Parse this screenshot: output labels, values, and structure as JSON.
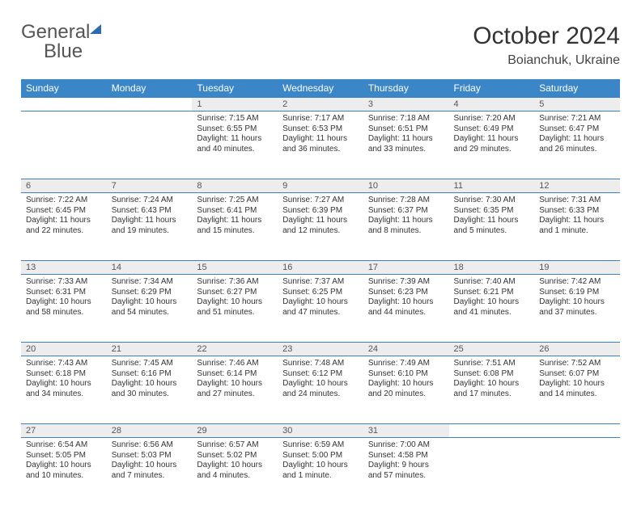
{
  "brand": {
    "word1": "General",
    "word2": "Blue"
  },
  "title": "October 2024",
  "location": "Boianchuk, Ukraine",
  "day_headers": [
    "Sunday",
    "Monday",
    "Tuesday",
    "Wednesday",
    "Thursday",
    "Friday",
    "Saturday"
  ],
  "colors": {
    "header_bg": "#3b86c7",
    "header_fg": "#ffffff",
    "rule": "#3b7fc4",
    "daynum_bg": "#ededed",
    "text": "#333333",
    "brand_gray": "#555555",
    "brand_blue": "#3b7fc4"
  },
  "typography": {
    "title_fontsize_pt": 22,
    "location_fontsize_pt": 12,
    "header_fontsize_pt": 9,
    "body_fontsize_pt": 7.5,
    "daynum_fontsize_pt": 8
  },
  "layout": {
    "cols": 7,
    "rows": 5,
    "leading_blanks": 2
  },
  "days": [
    {
      "n": "1",
      "sunrise": "7:15 AM",
      "sunset": "6:55 PM",
      "daylight": "11 hours and 40 minutes."
    },
    {
      "n": "2",
      "sunrise": "7:17 AM",
      "sunset": "6:53 PM",
      "daylight": "11 hours and 36 minutes."
    },
    {
      "n": "3",
      "sunrise": "7:18 AM",
      "sunset": "6:51 PM",
      "daylight": "11 hours and 33 minutes."
    },
    {
      "n": "4",
      "sunrise": "7:20 AM",
      "sunset": "6:49 PM",
      "daylight": "11 hours and 29 minutes."
    },
    {
      "n": "5",
      "sunrise": "7:21 AM",
      "sunset": "6:47 PM",
      "daylight": "11 hours and 26 minutes."
    },
    {
      "n": "6",
      "sunrise": "7:22 AM",
      "sunset": "6:45 PM",
      "daylight": "11 hours and 22 minutes."
    },
    {
      "n": "7",
      "sunrise": "7:24 AM",
      "sunset": "6:43 PM",
      "daylight": "11 hours and 19 minutes."
    },
    {
      "n": "8",
      "sunrise": "7:25 AM",
      "sunset": "6:41 PM",
      "daylight": "11 hours and 15 minutes."
    },
    {
      "n": "9",
      "sunrise": "7:27 AM",
      "sunset": "6:39 PM",
      "daylight": "11 hours and 12 minutes."
    },
    {
      "n": "10",
      "sunrise": "7:28 AM",
      "sunset": "6:37 PM",
      "daylight": "11 hours and 8 minutes."
    },
    {
      "n": "11",
      "sunrise": "7:30 AM",
      "sunset": "6:35 PM",
      "daylight": "11 hours and 5 minutes."
    },
    {
      "n": "12",
      "sunrise": "7:31 AM",
      "sunset": "6:33 PM",
      "daylight": "11 hours and 1 minute."
    },
    {
      "n": "13",
      "sunrise": "7:33 AM",
      "sunset": "6:31 PM",
      "daylight": "10 hours and 58 minutes."
    },
    {
      "n": "14",
      "sunrise": "7:34 AM",
      "sunset": "6:29 PM",
      "daylight": "10 hours and 54 minutes."
    },
    {
      "n": "15",
      "sunrise": "7:36 AM",
      "sunset": "6:27 PM",
      "daylight": "10 hours and 51 minutes."
    },
    {
      "n": "16",
      "sunrise": "7:37 AM",
      "sunset": "6:25 PM",
      "daylight": "10 hours and 47 minutes."
    },
    {
      "n": "17",
      "sunrise": "7:39 AM",
      "sunset": "6:23 PM",
      "daylight": "10 hours and 44 minutes."
    },
    {
      "n": "18",
      "sunrise": "7:40 AM",
      "sunset": "6:21 PM",
      "daylight": "10 hours and 41 minutes."
    },
    {
      "n": "19",
      "sunrise": "7:42 AM",
      "sunset": "6:19 PM",
      "daylight": "10 hours and 37 minutes."
    },
    {
      "n": "20",
      "sunrise": "7:43 AM",
      "sunset": "6:18 PM",
      "daylight": "10 hours and 34 minutes."
    },
    {
      "n": "21",
      "sunrise": "7:45 AM",
      "sunset": "6:16 PM",
      "daylight": "10 hours and 30 minutes."
    },
    {
      "n": "22",
      "sunrise": "7:46 AM",
      "sunset": "6:14 PM",
      "daylight": "10 hours and 27 minutes."
    },
    {
      "n": "23",
      "sunrise": "7:48 AM",
      "sunset": "6:12 PM",
      "daylight": "10 hours and 24 minutes."
    },
    {
      "n": "24",
      "sunrise": "7:49 AM",
      "sunset": "6:10 PM",
      "daylight": "10 hours and 20 minutes."
    },
    {
      "n": "25",
      "sunrise": "7:51 AM",
      "sunset": "6:08 PM",
      "daylight": "10 hours and 17 minutes."
    },
    {
      "n": "26",
      "sunrise": "7:52 AM",
      "sunset": "6:07 PM",
      "daylight": "10 hours and 14 minutes."
    },
    {
      "n": "27",
      "sunrise": "6:54 AM",
      "sunset": "5:05 PM",
      "daylight": "10 hours and 10 minutes."
    },
    {
      "n": "28",
      "sunrise": "6:56 AM",
      "sunset": "5:03 PM",
      "daylight": "10 hours and 7 minutes."
    },
    {
      "n": "29",
      "sunrise": "6:57 AM",
      "sunset": "5:02 PM",
      "daylight": "10 hours and 4 minutes."
    },
    {
      "n": "30",
      "sunrise": "6:59 AM",
      "sunset": "5:00 PM",
      "daylight": "10 hours and 1 minute."
    },
    {
      "n": "31",
      "sunrise": "7:00 AM",
      "sunset": "4:58 PM",
      "daylight": "9 hours and 57 minutes."
    }
  ],
  "labels": {
    "sunrise": "Sunrise: ",
    "sunset": "Sunset: ",
    "daylight": "Daylight: "
  }
}
